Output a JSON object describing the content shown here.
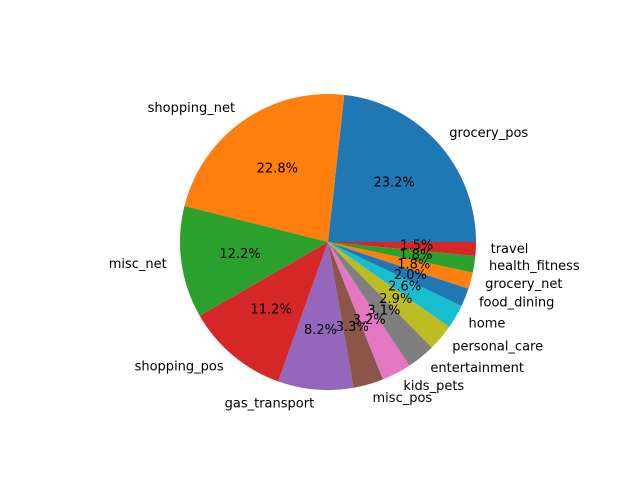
{
  "chart_data": {
    "type": "pie",
    "start_angle_deg": 0,
    "direction": "counterclockwise",
    "slices": [
      {
        "label": "grocery_pos",
        "percent": 23.2,
        "pct_label": "23.2%",
        "color": "#1f77b4"
      },
      {
        "label": "shopping_net",
        "percent": 22.8,
        "pct_label": "22.8%",
        "color": "#ff7f0e"
      },
      {
        "label": "misc_net",
        "percent": 12.2,
        "pct_label": "12.2%",
        "color": "#2ca02c"
      },
      {
        "label": "shopping_pos",
        "percent": 11.2,
        "pct_label": "11.2%",
        "color": "#d62728"
      },
      {
        "label": "gas_transport",
        "percent": 8.2,
        "pct_label": "8.2%",
        "color": "#9467bd"
      },
      {
        "label": "misc_pos",
        "percent": 3.3,
        "pct_label": "3.3%",
        "color": "#8c564b"
      },
      {
        "label": "kids_pets",
        "percent": 3.2,
        "pct_label": "3.2%",
        "color": "#e377c2"
      },
      {
        "label": "entertainment",
        "percent": 3.1,
        "pct_label": "3.1%",
        "color": "#7f7f7f"
      },
      {
        "label": "personal_care",
        "percent": 2.9,
        "pct_label": "2.9%",
        "color": "#bcbd22"
      },
      {
        "label": "home",
        "percent": 2.6,
        "pct_label": "2.6%",
        "color": "#17becf"
      },
      {
        "label": "food_dining",
        "percent": 2.0,
        "pct_label": "2.0%",
        "color": "#1f77b4"
      },
      {
        "label": "grocery_net",
        "percent": 1.8,
        "pct_label": "1.8%",
        "color": "#ff7f0e"
      },
      {
        "label": "health_fitness",
        "percent": 1.8,
        "pct_label": "1.8%",
        "color": "#2ca02c"
      },
      {
        "label": "travel",
        "percent": 1.5,
        "pct_label": "1.5%",
        "color": "#d62728"
      }
    ]
  }
}
